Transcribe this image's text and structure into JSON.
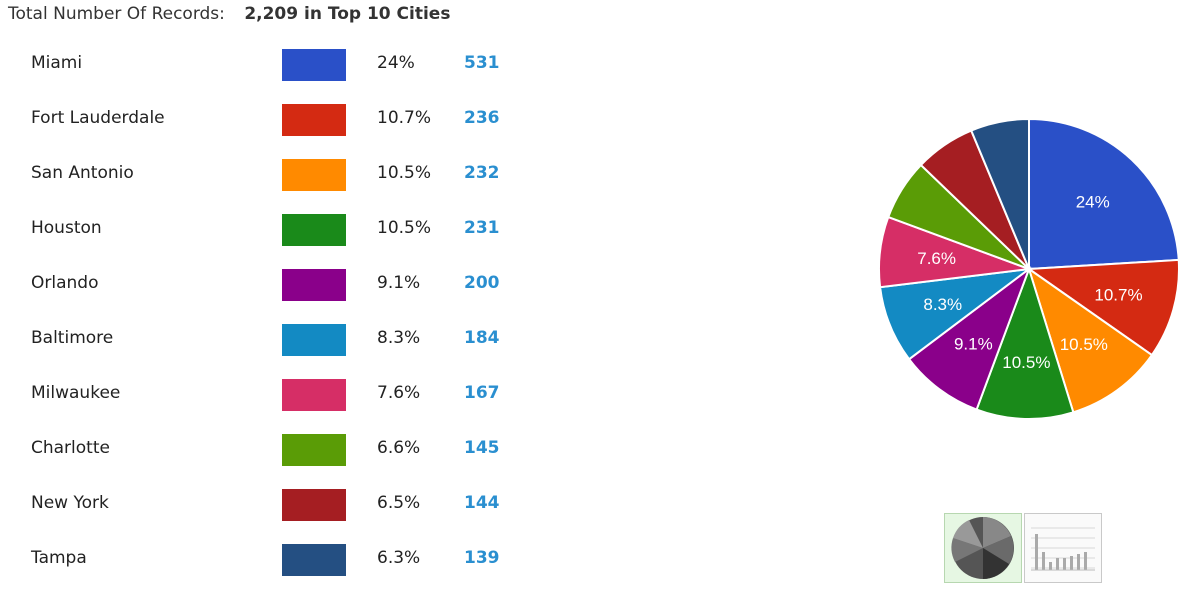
{
  "header": {
    "label": "Total Number Of Records:",
    "total": "2,209 in Top 10 Cities"
  },
  "chart_data": {
    "type": "pie",
    "categories": [
      "Miami",
      "Fort Lauderdale",
      "San Antonio",
      "Houston",
      "Orlando",
      "Baltimore",
      "Milwaukee",
      "Charlotte",
      "New York",
      "Tampa"
    ],
    "values": [
      531,
      236,
      232,
      231,
      200,
      184,
      167,
      145,
      144,
      139
    ],
    "percent_labels": [
      "24%",
      "10.7%",
      "10.5%",
      "10.5%",
      "9.1%",
      "8.3%",
      "7.6%",
      "6.6%",
      "6.5%",
      "6.3%"
    ],
    "count_labels": [
      "531",
      "236",
      "232",
      "231",
      "200",
      "184",
      "167",
      "145",
      "144",
      "139"
    ],
    "colors": [
      "#2a50c8",
      "#d42a12",
      "#ff8a00",
      "#1a8a1a",
      "#8a008a",
      "#138ac3",
      "#d62e66",
      "#5a9c06",
      "#a51e22",
      "#244f82"
    ],
    "slice_labels_shown": [
      "24%",
      "10.7%",
      "10.5%",
      "10.5%",
      "9.1%",
      "8.3%",
      "7.6%",
      "",
      "",
      ""
    ],
    "legend": "left"
  },
  "toggle": {
    "pie_icon": "pie-chart-icon",
    "bar_icon": "bar-chart-icon",
    "selected": "pie"
  }
}
